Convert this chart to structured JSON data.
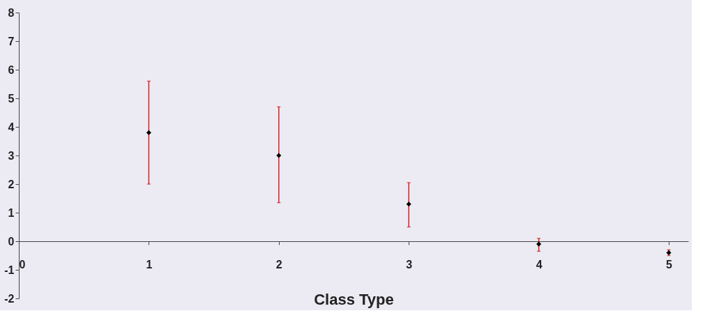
{
  "chart_data": {
    "type": "scatter",
    "xlabel": "Class Type",
    "x": [
      1,
      2,
      3,
      4,
      5
    ],
    "series": [
      {
        "color": "#000000",
        "values": [
          3.8,
          3.0,
          1.3,
          -0.1,
          -0.4
        ],
        "errors": [
          [
            2.0,
            5.6
          ],
          [
            1.35,
            4.7
          ],
          [
            0.5,
            2.05
          ],
          [
            -0.35,
            0.1
          ],
          [
            -0.5,
            -0.3
          ]
        ]
      }
    ],
    "xlim": [
      0,
      5.15
    ],
    "ylim": [
      -2,
      8
    ],
    "xticks": [
      0,
      1,
      2,
      3,
      4,
      5
    ],
    "yticks": [
      -2,
      -1,
      0,
      1,
      2,
      3,
      4,
      5,
      6,
      7,
      8
    ],
    "marker": "diamond",
    "grid": false
  }
}
